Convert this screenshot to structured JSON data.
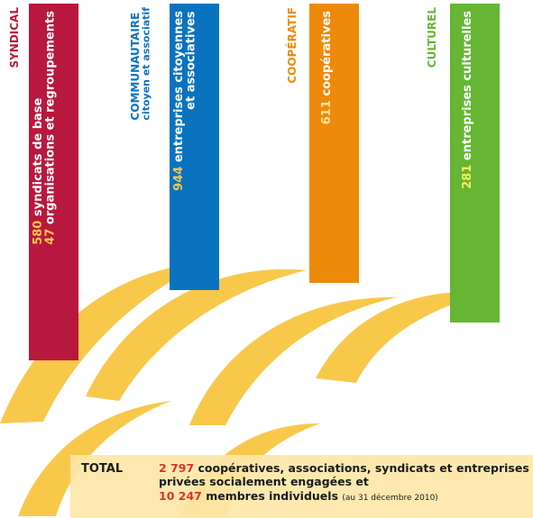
{
  "colors": {
    "syndical": "#b8183e",
    "communautaire": "#0a73bf",
    "cooperatif": "#ee8a0a",
    "culturel": "#67b534",
    "swirl": "#f8c84a",
    "total_bg": "#fde7a8",
    "total_number": "#e2312a"
  },
  "sectors": [
    {
      "id": "syndical",
      "title_lines": [
        "SYNDICAL"
      ],
      "stats": [
        {
          "number": "580",
          "number_color": "#f8c84a",
          "text": "syndicats de base"
        },
        {
          "number": "47",
          "number_color": "#f8c84a",
          "text": "organisations et regroupements"
        }
      ]
    },
    {
      "id": "communautaire",
      "title_lines": [
        "COMMUNAUTAIRE",
        "citoyen et associatif"
      ],
      "stats": [
        {
          "number": "944",
          "number_color": "#f8c84a",
          "text": "entreprises citoyennes"
        },
        {
          "number": "",
          "number_color": "#f8c84a",
          "text": "et associatives"
        }
      ]
    },
    {
      "id": "cooperatif",
      "title_lines": [
        "COOPÉRATIF"
      ],
      "stats": [
        {
          "number": "611",
          "number_color": "#fce59a",
          "text": "coopératives"
        }
      ]
    },
    {
      "id": "culturel",
      "title_lines": [
        "CULTUREL"
      ],
      "stats": [
        {
          "number": "281",
          "number_color": "#f3ef5a",
          "text": "entreprises culturelles"
        }
      ]
    }
  ],
  "total": {
    "label": "TOTAL",
    "number1": "2 797",
    "text1": "coopératives, associations, syndicats et entreprises privées socialement engagées et",
    "number2": "10 247",
    "text2": "membres individuels",
    "note": "(au 31 décembre 2010)"
  }
}
